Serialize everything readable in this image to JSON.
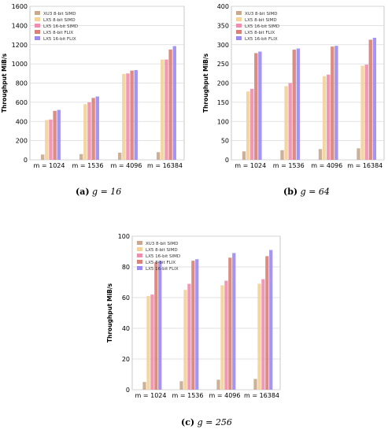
{
  "series_names": [
    "XU3 8-bit SIMD",
    "LX5 8-bit SIMD",
    "LX5 16-bit SIMD",
    "LX5 8-bit FLIX",
    "LX5 16-bit FLIX"
  ],
  "series_colors": [
    "#c9a98f",
    "#f3d39a",
    "#ef8fb0",
    "#d98277",
    "#9b8cf0"
  ],
  "chart_data": [
    {
      "type": "bar",
      "ylabel": "Throughput MiB/s",
      "categories": [
        "m = 1024",
        "m = 1536",
        "m = 4096",
        "m = 16384"
      ],
      "ylim": [
        0,
        1600
      ],
      "yticks": [
        0,
        200,
        400,
        600,
        800,
        1000,
        1200,
        1400,
        1600
      ],
      "grid": true,
      "legend": "top-left",
      "series": [
        {
          "name": "XU3 8-bit SIMD",
          "values": [
            55,
            60,
            75,
            80
          ]
        },
        {
          "name": "LX5 8-bit SIMD",
          "values": [
            415,
            580,
            895,
            1045
          ]
        },
        {
          "name": "LX5 16-bit SIMD",
          "values": [
            420,
            600,
            900,
            1045
          ]
        },
        {
          "name": "LX5 8-bit FLIX",
          "values": [
            510,
            645,
            930,
            1150
          ]
        },
        {
          "name": "LX5 16-bit FLIX",
          "values": [
            520,
            660,
            935,
            1185
          ]
        }
      ]
    },
    {
      "type": "bar",
      "ylabel": "Throughput MiB/s",
      "categories": [
        "m = 1024",
        "m = 1536",
        "m = 4096",
        "m = 16384"
      ],
      "ylim": [
        0,
        400
      ],
      "yticks": [
        0,
        50,
        100,
        150,
        200,
        250,
        300,
        350,
        400
      ],
      "grid": true,
      "legend": "top-left",
      "series": [
        {
          "name": "XU3 8-bit SIMD",
          "values": [
            22,
            25,
            28,
            30
          ]
        },
        {
          "name": "LX5 8-bit SIMD",
          "values": [
            178,
            192,
            218,
            245
          ]
        },
        {
          "name": "LX5 16-bit SIMD",
          "values": [
            185,
            200,
            222,
            248
          ]
        },
        {
          "name": "LX5 8-bit FLIX",
          "values": [
            278,
            287,
            295,
            313
          ]
        },
        {
          "name": "LX5 16-bit FLIX",
          "values": [
            282,
            290,
            297,
            318
          ]
        }
      ]
    },
    {
      "type": "bar",
      "ylabel": "Throughput MiB/s",
      "categories": [
        "m = 1024",
        "m = 1536",
        "m = 4096",
        "m = 16384"
      ],
      "ylim": [
        0,
        100
      ],
      "yticks": [
        0,
        20,
        40,
        60,
        80,
        100
      ],
      "grid": true,
      "legend": "top-left",
      "series": [
        {
          "name": "XU3 8-bit SIMD",
          "values": [
            5,
            5.5,
            6.5,
            7
          ]
        },
        {
          "name": "LX5 8-bit SIMD",
          "values": [
            61,
            65,
            68,
            69
          ]
        },
        {
          "name": "LX5 16-bit SIMD",
          "values": [
            62,
            69,
            71,
            72
          ]
        },
        {
          "name": "LX5 8-bit FLIX",
          "values": [
            83,
            84,
            86,
            87
          ]
        },
        {
          "name": "LX5 16-bit FLIX",
          "values": [
            84,
            85,
            89,
            91
          ]
        }
      ]
    }
  ],
  "captions": [
    {
      "label": "(a)",
      "text": "g = 16"
    },
    {
      "label": "(b)",
      "text": "g = 64"
    },
    {
      "label": "(c)",
      "text": "g = 256"
    }
  ]
}
